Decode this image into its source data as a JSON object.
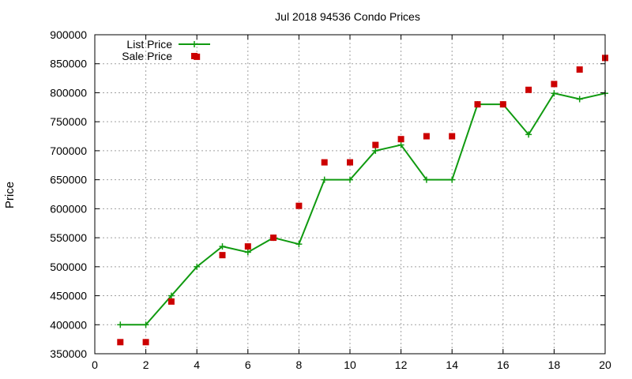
{
  "chart_data": {
    "type": "line",
    "title": "Jul 2018 94536 Condo Prices",
    "xlabel": "",
    "ylabel": "Price",
    "xlim": [
      0,
      20
    ],
    "ylim": [
      350000,
      900000
    ],
    "x_ticks": [
      0,
      2,
      4,
      6,
      8,
      10,
      12,
      14,
      16,
      18,
      20
    ],
    "y_ticks": [
      350000,
      400000,
      450000,
      500000,
      550000,
      600000,
      650000,
      700000,
      750000,
      800000,
      850000,
      900000
    ],
    "grid": true,
    "legend_position": "top-left",
    "series": [
      {
        "name": "List Price",
        "style": "line-with-plus-markers",
        "color": "#109a10",
        "x": [
          1,
          2,
          3,
          4,
          5,
          6,
          7,
          8,
          9,
          10,
          11,
          12,
          13,
          14,
          15,
          16,
          17,
          18,
          19,
          20
        ],
        "values": [
          400000,
          400000,
          450000,
          500000,
          535000,
          525000,
          550000,
          539000,
          650000,
          650000,
          700000,
          710000,
          650000,
          650000,
          780000,
          780000,
          728000,
          799000,
          789000,
          799000
        ]
      },
      {
        "name": "Sale Price",
        "style": "square-markers",
        "color": "#cc0000",
        "x": [
          1,
          2,
          3,
          4,
          5,
          6,
          7,
          8,
          9,
          10,
          11,
          12,
          13,
          14,
          15,
          16,
          17,
          18,
          19,
          20
        ],
        "values": [
          370000,
          370000,
          440000,
          862000,
          520000,
          535000,
          550000,
          605000,
          680000,
          680000,
          710000,
          720000,
          725000,
          725000,
          780000,
          780000,
          805000,
          815000,
          840000,
          860000
        ]
      }
    ]
  }
}
